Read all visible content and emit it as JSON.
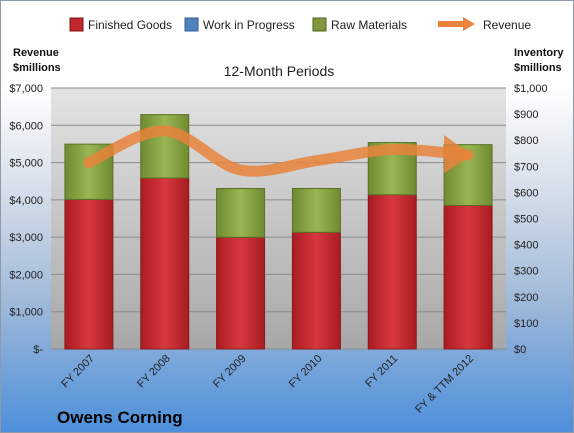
{
  "chart_data": {
    "type": "bar",
    "title": "12-Month Periods",
    "company": "Owens Corning",
    "y_left_title_line1": "Revenue",
    "y_left_title_line2": "$millions",
    "y_right_title_line1": "Inventory",
    "y_right_title_line2": "$millions",
    "categories": [
      "FY 2007",
      "FY 2008",
      "FY 2009",
      "FY 2010",
      "FY 2011",
      "FY & TTM 2012"
    ],
    "left_axis": {
      "ylim": [
        0,
        7000
      ],
      "ticks": [
        "$-",
        "$1,000",
        "$2,000",
        "$3,000",
        "$4,000",
        "$5,000",
        "$6,000",
        "$7,000"
      ]
    },
    "right_axis": {
      "ylim": [
        0,
        1000
      ],
      "ticks": [
        "$0",
        "$100",
        "$200",
        "$300",
        "$400",
        "$500",
        "$600",
        "$700",
        "$800",
        "$900",
        "$1,000"
      ]
    },
    "series": [
      {
        "name": "Finished Goods",
        "kind": "stacked-bar",
        "axis": "right",
        "color": "#c0282d",
        "values": [
          573,
          655,
          428,
          447,
          591,
          550
        ]
      },
      {
        "name": "Work in Progress",
        "kind": "stacked-bar",
        "axis": "right",
        "color": "#4f81bd",
        "values": [
          0,
          0,
          0,
          0,
          0,
          0
        ]
      },
      {
        "name": "Raw Materials",
        "kind": "stacked-bar",
        "axis": "right",
        "color": "#7e9a3c",
        "values": [
          212,
          243,
          187,
          168,
          200,
          233
        ]
      },
      {
        "name": "Revenue",
        "kind": "line",
        "axis": "left",
        "color": "#e8823b",
        "values": [
          5000,
          5850,
          4800,
          5050,
          5350,
          5200
        ]
      }
    ],
    "grid": true,
    "legend": "top"
  }
}
